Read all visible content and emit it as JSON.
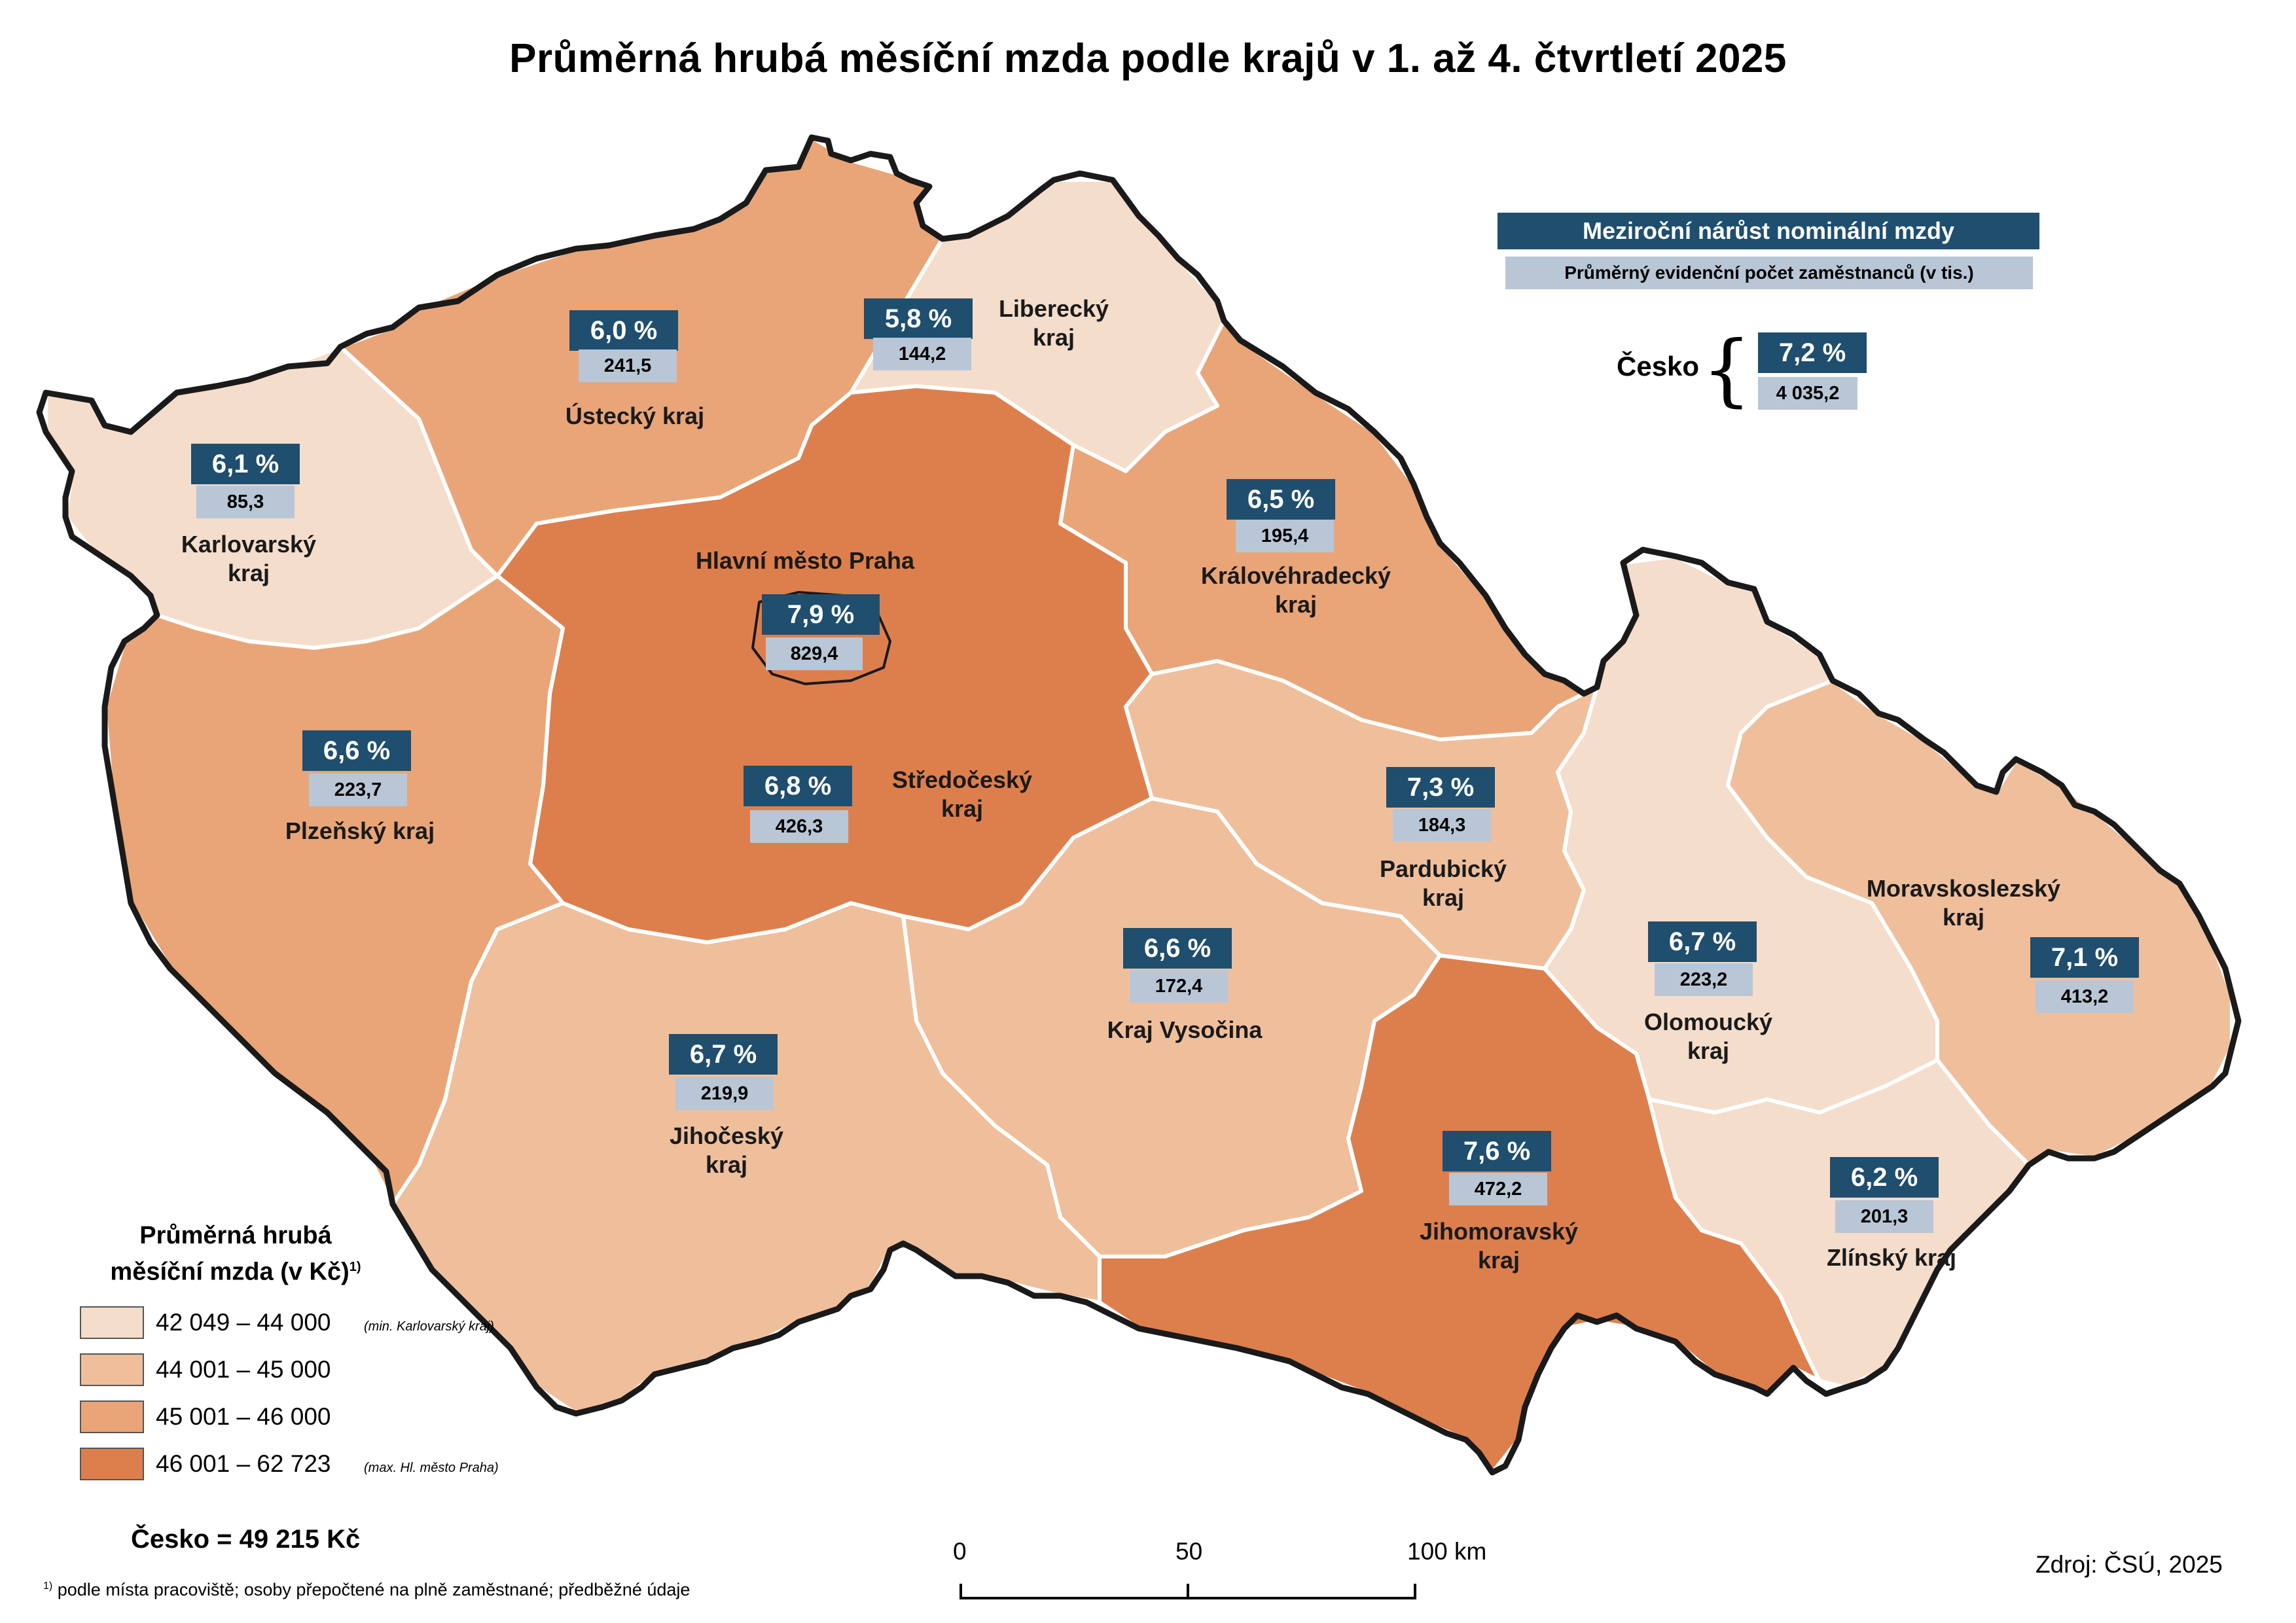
{
  "title": "Průměrná hrubá měsíční mzda podle krajů v 1. až 4. čtvrtletí 2025",
  "info_box": {
    "growth_label": "Meziroční nárůst nominální mzdy",
    "employees_label": "Průměrný evidenční počet zaměstnanců (v tis.)"
  },
  "cesko": {
    "label": "Česko",
    "growth": "7,2 %",
    "employees": "4 035,2",
    "total_wage": "Česko = 49 215 Kč"
  },
  "colors": {
    "class1": "#f5ddcb",
    "class2": "#efbf9c",
    "class3": "#e9a578",
    "class4": "#dd7f4d",
    "box_dark": "#1f4e6e",
    "box_light": "#b9c6d6"
  },
  "regions": [
    {
      "name_lines": [
        "Karlovarský",
        "kraj"
      ],
      "growth": "6,1 %",
      "employees": "85,3",
      "class": 1
    },
    {
      "name_lines": [
        "Ústecký kraj"
      ],
      "growth": "6,0 %",
      "employees": "241,5",
      "class": 3
    },
    {
      "name_lines": [
        "Liberecký",
        "kraj"
      ],
      "growth": "5,8 %",
      "employees": "144,2",
      "class": 1
    },
    {
      "name_lines": [
        "Královéhradecký",
        "kraj"
      ],
      "growth": "6,5 %",
      "employees": "195,4",
      "class": 3
    },
    {
      "name_lines": [
        "Hlavní město Praha"
      ],
      "growth": "7,9 %",
      "employees": "829,4",
      "class": 4
    },
    {
      "name_lines": [
        "Středočeský",
        "kraj"
      ],
      "growth": "6,8 %",
      "employees": "426,3",
      "class": 4
    },
    {
      "name_lines": [
        "Plzeňský kraj"
      ],
      "growth": "6,6 %",
      "employees": "223,7",
      "class": 3
    },
    {
      "name_lines": [
        "Pardubický",
        "kraj"
      ],
      "growth": "7,3 %",
      "employees": "184,3",
      "class": 2
    },
    {
      "name_lines": [
        "Kraj Vysočina"
      ],
      "growth": "6,6 %",
      "employees": "172,4",
      "class": 2
    },
    {
      "name_lines": [
        "Jihočeský",
        "kraj"
      ],
      "growth": "6,7 %",
      "employees": "219,9",
      "class": 2
    },
    {
      "name_lines": [
        "Jihomoravský",
        "kraj"
      ],
      "growth": "7,6 %",
      "employees": "472,2",
      "class": 4
    },
    {
      "name_lines": [
        "Olomoucký",
        "kraj"
      ],
      "growth": "6,7 %",
      "employees": "223,2",
      "class": 1
    },
    {
      "name_lines": [
        "Moravskoslezský",
        "kraj"
      ],
      "growth": "7,1 %",
      "employees": "413,2",
      "class": 2
    },
    {
      "name_lines": [
        "Zlínský kraj"
      ],
      "growth": "6,2 %",
      "employees": "201,3",
      "class": 1
    }
  ],
  "legend": {
    "title": "Průměrná hrubá měsíční mzda (v Kč)",
    "title_sup": "1)",
    "classes": [
      {
        "range": "42 049 – 44 000",
        "note": "(min. Karlovarský kraj)"
      },
      {
        "range": "44 001 – 45 000",
        "note": ""
      },
      {
        "range": "45 001 – 46 000",
        "note": ""
      },
      {
        "range": "46 001 – 62 723",
        "note": "(max. Hl. město Praha)"
      }
    ]
  },
  "scale_bar": {
    "labels": [
      "0",
      "50",
      "100 km"
    ]
  },
  "footnote_mark": "1)",
  "footnote": "podle místa pracoviště; osoby přepočtené na plně zaměstnané; předběžné údaje",
  "source": "Zdroj: ČSÚ, 2025"
}
